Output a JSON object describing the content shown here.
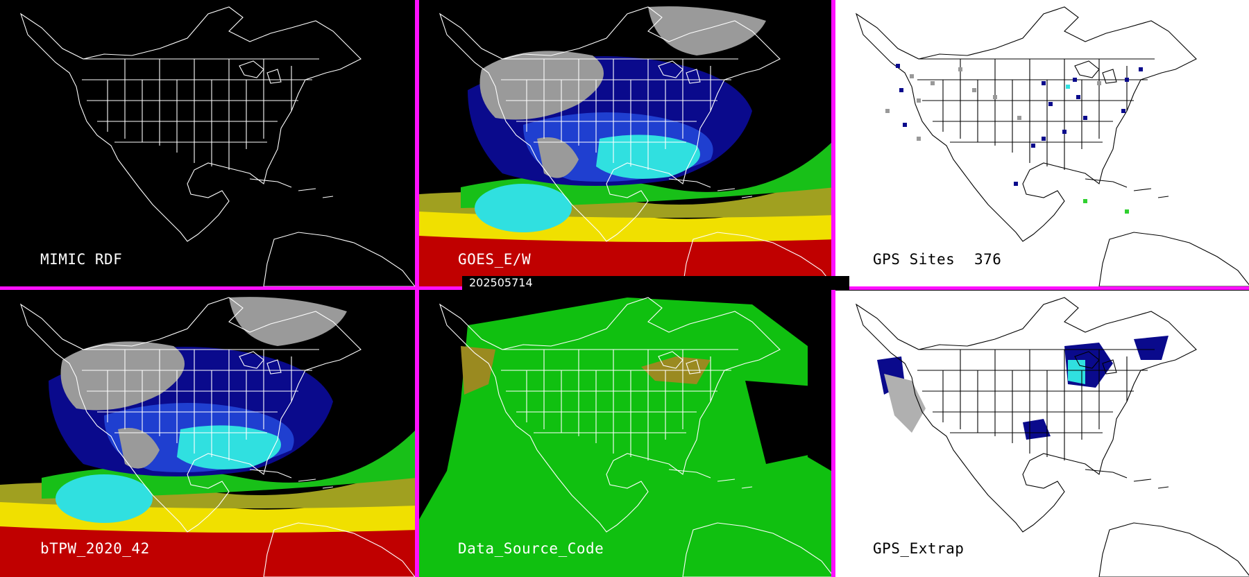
{
  "panels": [
    {
      "id": "mimic",
      "label": "MIMIC RDF",
      "background": "#000000",
      "line_color": "#ffffff",
      "fill": "none"
    },
    {
      "id": "goes",
      "label": "GOES_E/W",
      "background": "#000000",
      "line_color": "#ffffff",
      "fill": "tpw"
    },
    {
      "id": "gps_sites",
      "label": "GPS Sites",
      "count": "376",
      "background": "#ffffff",
      "line_color": "#000000",
      "fill": "sites"
    },
    {
      "id": "btpw",
      "label": "bTPW_2020_42",
      "background": "#000000",
      "line_color": "#ffffff",
      "fill": "tpw"
    },
    {
      "id": "source_code",
      "label": "Data_Source_Code",
      "background": "#000000",
      "line_color": "#ffffff",
      "fill": "green"
    },
    {
      "id": "gps_extrap",
      "label": "GPS_Extrap",
      "background": "#ffffff",
      "line_color": "#000000",
      "fill": "extrap"
    }
  ],
  "timestamp": "202505714",
  "colors": {
    "separator": "#ff10ff",
    "tpw_gray": "#9a9a9a",
    "tpw_navy": "#0a0a8c",
    "tpw_blue": "#1f3fd0",
    "tpw_cyan": "#30e0e0",
    "tpw_green": "#18c018",
    "tpw_olive": "#a0a020",
    "tpw_yellow": "#f0e000",
    "tpw_red": "#c00000",
    "source_green": "#10c010",
    "source_olive": "#9a8a20"
  }
}
